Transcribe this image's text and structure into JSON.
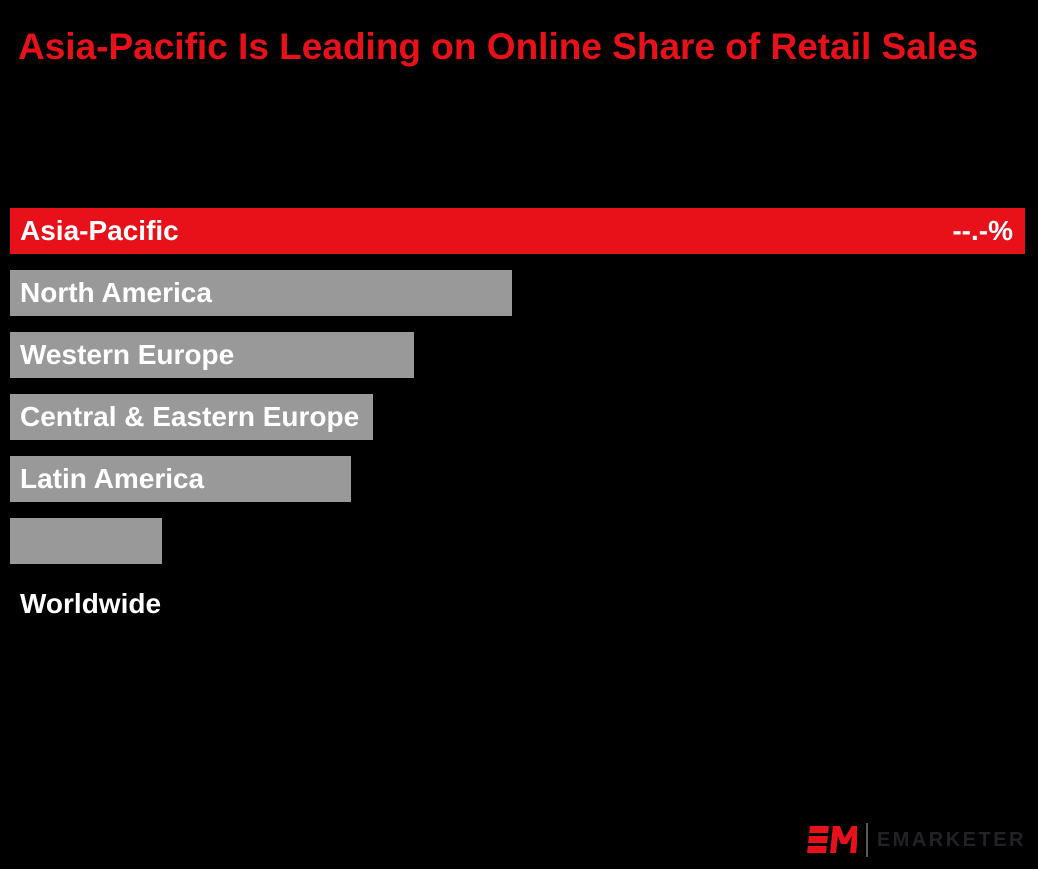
{
  "title": "Asia-Pacific Is Leading on Online Share of Retail Sales",
  "colors": {
    "background": "#000000",
    "accent_red": "#e8111a",
    "bar_gray": "#999999",
    "bar_text_white": "#ffffff",
    "logo_red": "#e8111a",
    "logo_wordmark_gray": "#202225"
  },
  "chart_data": {
    "type": "bar",
    "orientation": "horizontal",
    "title": "Asia-Pacific Is Leading on Online Share of Retail Sales",
    "xlabel": "",
    "ylabel": "",
    "grid": false,
    "legend": "none",
    "categories": [
      "Asia-Pacific",
      "North America",
      "Western Europe",
      "Central & Eastern Europe",
      "Latin America",
      "Worldwide"
    ],
    "values_relative_pct": [
      100,
      49.5,
      39.8,
      35.8,
      33.6,
      15.0
    ],
    "value_labels": [
      "--.-%",
      "",
      "",
      "",
      "",
      ""
    ],
    "bar_colors": [
      "#e8111a",
      "#999999",
      "#999999",
      "#999999",
      "#999999",
      "#999999"
    ],
    "label_placement": [
      "inside",
      "inside",
      "inside",
      "inside",
      "inside",
      "below"
    ]
  },
  "branding": {
    "logo_mark": "EM",
    "logo_text": "EMARKETER"
  }
}
